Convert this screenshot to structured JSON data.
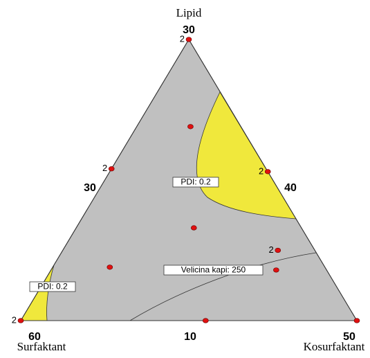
{
  "chart_data": {
    "type": "ternary",
    "components": [
      "Lipid",
      "Surfaktant",
      "Kosurfaktant"
    ],
    "vertex_values": [
      30,
      60,
      50
    ],
    "edge_values": [
      30,
      40,
      10
    ],
    "point_color": "#e01010",
    "region_color": "#f0e83c",
    "background_color": "#c0c0c0",
    "points": [
      {
        "values": [
          1,
          0,
          0
        ],
        "label": "2"
      },
      {
        "values": [
          0,
          1,
          0
        ],
        "label": "2"
      },
      {
        "values": [
          0,
          0,
          1
        ]
      },
      {
        "values": [
          0,
          0.45,
          0.55
        ]
      },
      {
        "values": [
          0.54,
          0.46,
          0
        ],
        "label": "2"
      },
      {
        "values": [
          0.53,
          0,
          0.47
        ],
        "label": "2"
      },
      {
        "values": [
          0.69,
          0.15,
          0.16
        ]
      },
      {
        "values": [
          0.33,
          0.32,
          0.35
        ]
      },
      {
        "values": [
          0.19,
          0.64,
          0.17
        ]
      },
      {
        "values": [
          0.25,
          0.11,
          0.64
        ],
        "label": "2"
      },
      {
        "values": [
          0.18,
          0.15,
          0.67
        ]
      }
    ],
    "contour_labels": [
      "PDI: 0.2",
      "PDI: 0.2",
      "Velicina kapi: 250"
    ]
  }
}
